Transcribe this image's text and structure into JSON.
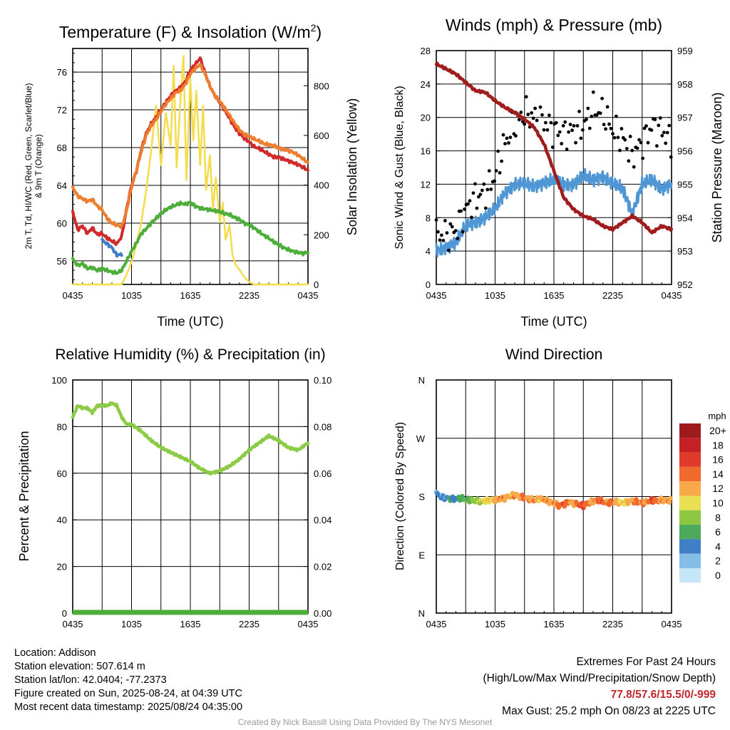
{
  "colors": {
    "red": "#d22a2a",
    "dark_red": "#b71c1c",
    "orange": "#ee7d2f",
    "green": "#4daf3a",
    "blue": "#3f7fc7",
    "yellow": "#f4dc4c",
    "light_green": "#8ccb45",
    "maroon": "#a11c1c",
    "black": "#000000",
    "sky_blue": "#4f96d4"
  },
  "chart_data": [
    {
      "id": "temperature",
      "type": "line",
      "title": "Temperature (F) & Insolation (W/m²)",
      "xlabel": "Time (UTC)",
      "ylabel_left": "2m T, Td, HI/WC (Red, Green, Scarlet/Blue) & 9m T (Orange)",
      "ylabel_right": "Solar Insolation (Yellow)",
      "x_tick_labels": [
        "0435",
        "1035",
        "1635",
        "2235",
        "0435"
      ],
      "x_range_hours": [
        0,
        24
      ],
      "y_left_ticks": [
        56,
        60,
        64,
        68,
        72,
        76
      ],
      "y_left_range": [
        53.5,
        78.5
      ],
      "y_right_ticks": [
        0,
        200,
        400,
        600,
        800
      ],
      "y_right_range": [
        0,
        950
      ],
      "grid": true,
      "series": [
        {
          "name": "2m T",
          "color": "#d22a2a",
          "axis": "left",
          "x": [
            0,
            0.5,
            1,
            1.5,
            2,
            2.5,
            3,
            3.5,
            4,
            4.5,
            5,
            5.5,
            6,
            6.5,
            7,
            7.5,
            8,
            8.5,
            9,
            9.5,
            10,
            10.5,
            11,
            11.5,
            12,
            12.5,
            13,
            13.5,
            14,
            14.5,
            15,
            15.5,
            16,
            16.5,
            17,
            17.5,
            18,
            18.5,
            19,
            19.5,
            20,
            20.5,
            21,
            21.5,
            22,
            22.5,
            23,
            23.5,
            24
          ],
          "y": [
            61.2,
            59.3,
            59.7,
            58.9,
            59.5,
            58.8,
            58.9,
            58.4,
            58.1,
            57.8,
            58.6,
            61.5,
            64.0,
            65.5,
            67.8,
            69.5,
            70.5,
            71.2,
            72.0,
            72.8,
            73.5,
            74.0,
            74.4,
            75.0,
            76.2,
            76.8,
            77.5,
            75.9,
            74.5,
            73.5,
            72.8,
            72.0,
            71.1,
            70.2,
            69.5,
            69.0,
            68.6,
            68.1,
            67.9,
            67.6,
            67.3,
            67.0,
            67.0,
            66.8,
            66.6,
            66.4,
            66.2,
            65.9,
            65.6
          ]
        },
        {
          "name": "9m T",
          "color": "#ee7d2f",
          "axis": "left",
          "x": [
            0,
            0.5,
            1,
            1.5,
            2,
            2.5,
            3,
            3.5,
            4,
            4.5,
            5,
            5.5,
            6,
            6.5,
            7,
            7.5,
            8,
            8.5,
            9,
            9.5,
            10,
            10.5,
            11,
            11.5,
            12,
            12.5,
            13,
            13.5,
            14,
            14.5,
            15,
            15.5,
            16,
            16.5,
            17,
            17.5,
            18,
            18.5,
            19,
            19.5,
            20,
            20.5,
            21,
            21.5,
            22,
            22.5,
            23,
            23.5,
            24
          ],
          "y": [
            63.8,
            62.9,
            62.6,
            62.3,
            62.5,
            61.8,
            61.4,
            60.5,
            60.0,
            59.8,
            59.6,
            61.3,
            63.8,
            65.6,
            67.6,
            69.3,
            70.3,
            71.0,
            71.8,
            72.6,
            73.2,
            73.8,
            74.1,
            74.7,
            75.8,
            76.4,
            76.8,
            75.8,
            74.5,
            73.5,
            72.9,
            72.2,
            71.4,
            70.6,
            69.9,
            69.4,
            69.2,
            68.9,
            68.7,
            68.4,
            68.3,
            68.2,
            68.0,
            67.8,
            67.7,
            67.5,
            67.2,
            66.8,
            66.4
          ]
        },
        {
          "name": "Td",
          "color": "#4daf3a",
          "axis": "left",
          "x": [
            0,
            0.5,
            1,
            1.5,
            2,
            2.5,
            3,
            3.5,
            4,
            4.5,
            5,
            5.5,
            6,
            6.5,
            7,
            7.5,
            8,
            8.5,
            9,
            9.5,
            10,
            10.5,
            11,
            11.5,
            12,
            12.5,
            13,
            13.5,
            14,
            14.5,
            15,
            15.5,
            16,
            16.5,
            17,
            17.5,
            18,
            18.5,
            19,
            19.5,
            20,
            20.5,
            21,
            21.5,
            22,
            22.5,
            23,
            23.5,
            24
          ],
          "y": [
            56.2,
            55.5,
            55.7,
            55.2,
            55.3,
            55.0,
            55.2,
            55.0,
            54.8,
            54.7,
            55.0,
            56.0,
            57.0,
            57.9,
            58.9,
            59.4,
            60.0,
            60.5,
            61.0,
            61.4,
            61.7,
            61.9,
            62.1,
            62.0,
            62.2,
            61.8,
            61.6,
            61.5,
            61.4,
            61.3,
            61.2,
            61.0,
            60.9,
            60.6,
            60.4,
            60.0,
            59.8,
            59.5,
            59.1,
            58.7,
            58.4,
            58.0,
            57.7,
            57.4,
            57.2,
            57.0,
            56.9,
            56.8,
            56.9
          ]
        },
        {
          "name": "HI/WC",
          "color": "#3f7fc7",
          "axis": "left",
          "x": [
            3.0,
            3.5,
            4.0,
            4.5,
            5.0
          ],
          "y": [
            58.2,
            57.8,
            57.4,
            56.6,
            56.7
          ]
        },
        {
          "name": "Solar Insolation",
          "color": "#f4dc4c",
          "axis": "right",
          "x": [
            0,
            5,
            5.5,
            6,
            6.5,
            7,
            7.5,
            8,
            8.5,
            9,
            9.5,
            10,
            10.3,
            10.6,
            11,
            11.3,
            11.6,
            12,
            12.3,
            12.6,
            13,
            13.3,
            13.6,
            14,
            14.3,
            14.6,
            15,
            15.3,
            15.6,
            16,
            16.3,
            16.6,
            17,
            17.5,
            18,
            18.5,
            19,
            24
          ],
          "y": [
            0,
            0,
            40,
            90,
            160,
            250,
            380,
            540,
            720,
            480,
            690,
            560,
            880,
            470,
            750,
            920,
            420,
            830,
            580,
            780,
            480,
            720,
            380,
            520,
            300,
            430,
            250,
            330,
            180,
            240,
            120,
            80,
            60,
            30,
            10,
            0,
            0,
            0
          ]
        }
      ]
    },
    {
      "id": "winds",
      "type": "line",
      "title": "Winds (mph) & Pressure (mb)",
      "xlabel": "Time (UTC)",
      "ylabel_left": "Sonic Wind & Gust (Blue, Black)",
      "ylabel_right": "Station Pressure (Maroon)",
      "x_tick_labels": [
        "0435",
        "1035",
        "1635",
        "2235",
        "0435"
      ],
      "x_range_hours": [
        0,
        24
      ],
      "y_left_ticks": [
        0,
        4,
        8,
        12,
        16,
        20,
        24,
        28
      ],
      "y_left_range": [
        0,
        28
      ],
      "y_right_ticks": [
        952,
        953,
        954,
        955,
        956,
        957,
        958,
        959
      ],
      "y_right_range": [
        952,
        959
      ],
      "grid": true,
      "series": [
        {
          "name": "Sonic Wind",
          "color": "#4f96d4",
          "axis": "left",
          "x": [
            0,
            1,
            2,
            3,
            4,
            5,
            6,
            7,
            8,
            9,
            10,
            11,
            12,
            13,
            14,
            15,
            16,
            17,
            18,
            19,
            20,
            21,
            22,
            23,
            24
          ],
          "y": [
            4.0,
            4.5,
            5.0,
            7.0,
            7.5,
            8.0,
            9.0,
            11.0,
            12.0,
            12.0,
            11.8,
            12.2,
            12.5,
            12.0,
            12.0,
            13.0,
            12.5,
            13.0,
            12.0,
            11.5,
            8.5,
            12.0,
            12.5,
            11.5,
            12.0
          ]
        },
        {
          "name": "Gust",
          "color": "#000000",
          "axis": "left",
          "x": [
            0,
            1,
            2,
            3,
            4,
            5,
            6,
            7,
            8,
            9,
            10,
            11,
            12,
            13,
            14,
            15,
            16,
            17,
            18,
            19,
            20,
            21,
            22,
            23,
            24
          ],
          "y": [
            6.0,
            6.0,
            6.5,
            9.0,
            10.5,
            11.0,
            13.0,
            17.0,
            19.0,
            20.5,
            20.0,
            19.5,
            18.5,
            18.0,
            18.5,
            19.0,
            21.0,
            20.5,
            18.5,
            17.5,
            15.5,
            17.0,
            19.0,
            18.5,
            17.0
          ]
        },
        {
          "name": "Station Pressure",
          "color": "#a11c1c",
          "axis": "right",
          "x": [
            0,
            1,
            2,
            3,
            4,
            5,
            6,
            7,
            8,
            9,
            10,
            11,
            12,
            13,
            14,
            15,
            16,
            17,
            18,
            19,
            20,
            21,
            22,
            23,
            24
          ],
          "y": [
            958.6,
            958.45,
            958.3,
            958.05,
            957.8,
            957.75,
            957.5,
            957.3,
            957.15,
            956.95,
            956.7,
            956.2,
            955.4,
            954.6,
            954.25,
            954.05,
            953.95,
            953.75,
            953.65,
            953.85,
            954.05,
            953.85,
            953.55,
            953.75,
            953.65
          ]
        }
      ]
    },
    {
      "id": "humidity",
      "type": "line",
      "title": "Relative Humidity (%) & Precipitation (in)",
      "ylabel_left": "Percent & Precipitation",
      "x_tick_labels": [
        "0435",
        "1035",
        "1635",
        "2235",
        "0435"
      ],
      "x_range_hours": [
        0,
        24
      ],
      "y_left_ticks": [
        0,
        20,
        40,
        60,
        80,
        100
      ],
      "y_left_range": [
        0,
        100
      ],
      "y_right_tick_labels": [
        "0.00",
        "0.02",
        "0.04",
        "0.06",
        "0.08",
        "0.10"
      ],
      "y_right_range": [
        0,
        0.1
      ],
      "grid": true,
      "series": [
        {
          "name": "Relative Humidity",
          "color": "#8ccb45",
          "axis": "left",
          "x": [
            0,
            0.5,
            1,
            1.5,
            2,
            2.5,
            3,
            3.5,
            4,
            4.5,
            5,
            5.5,
            6,
            7,
            8,
            9,
            10,
            11,
            12,
            13,
            14,
            15,
            16,
            17,
            18,
            19,
            20,
            21,
            22,
            23,
            24
          ],
          "y": [
            84,
            89,
            88,
            88,
            86,
            89,
            89,
            89,
            90,
            89,
            84,
            81,
            81,
            78,
            74,
            71,
            69,
            67,
            65,
            62,
            60,
            61,
            63,
            66,
            70,
            73,
            76,
            74,
            71,
            70,
            73
          ]
        },
        {
          "name": "Precipitation",
          "color": "#4daf3a",
          "axis": "right",
          "x": [
            0,
            24
          ],
          "y": [
            0,
            0
          ]
        }
      ]
    },
    {
      "id": "direction",
      "type": "scatter",
      "title": "Wind Direction",
      "ylabel_left": "Direction (Colored By Speed)",
      "x_tick_labels": [
        "0435",
        "1035",
        "1635",
        "2235",
        "0435"
      ],
      "x_range_hours": [
        0,
        24
      ],
      "y_tick_labels": [
        "N",
        "E",
        "S",
        "W",
        "N"
      ],
      "y_range_degrees": [
        0,
        360
      ],
      "grid": true,
      "legend": {
        "title": "mph",
        "labels": [
          "20+",
          "18",
          "16",
          "14",
          "12",
          "10",
          "8",
          "6",
          "4",
          "2",
          "0"
        ],
        "colors": [
          "#9e1b1b",
          "#c62027",
          "#e03a2a",
          "#f06a2e",
          "#f8a94a",
          "#e9df52",
          "#8dc640",
          "#4daa5c",
          "#3f7fc7",
          "#84bde6",
          "#c5e6f7"
        ]
      },
      "series": [
        {
          "name": "Direction",
          "x": [
            0,
            0.5,
            1,
            1.5,
            2,
            2.5,
            3,
            3.5,
            4,
            4.5,
            5,
            5.5,
            6,
            6.5,
            7,
            7.5,
            8,
            8.5,
            9,
            9.5,
            10,
            10.5,
            11,
            11.5,
            12,
            12.5,
            13,
            13.5,
            14,
            14.5,
            15,
            15.5,
            16,
            16.5,
            17,
            17.5,
            18,
            18.5,
            19,
            19.5,
            20,
            20.5,
            21,
            21.5,
            22,
            22.5,
            23,
            23.5,
            24
          ],
          "y": [
            185,
            180,
            178,
            177,
            176,
            178,
            175,
            174,
            173,
            172,
            173,
            174,
            175,
            176,
            178,
            181,
            183,
            180,
            178,
            176,
            174,
            176,
            175,
            172,
            170,
            166,
            168,
            172,
            170,
            168,
            166,
            170,
            172,
            174,
            172,
            170,
            171,
            172,
            170,
            172,
            174,
            172,
            170,
            172,
            174,
            173,
            174,
            174,
            173
          ],
          "speed": [
            3,
            4,
            3,
            5,
            4,
            6,
            7,
            7,
            8,
            9,
            10,
            11,
            12,
            13,
            12,
            11,
            13,
            12,
            14,
            12,
            13,
            11,
            12,
            13,
            12,
            14,
            15,
            13,
            12,
            14,
            16,
            13,
            12,
            14,
            15,
            13,
            14,
            12,
            10,
            11,
            12,
            14,
            13,
            12,
            16,
            14,
            13,
            12,
            12
          ]
        }
      ]
    }
  ],
  "info": {
    "location": "Location: Addison",
    "elevation": "Station elevation: 507.614 m",
    "latlon": "Station lat/lon: 42.0404; -77.2373",
    "created": "Figure created on Sun, 2025-08-24, at 04:39 UTC",
    "recent": "Most recent data timestamp: 2025/08/24 04:35:00"
  },
  "extremes": {
    "title": "Extremes For Past 24 Hours",
    "subtitle": "(High/Low/Max Wind/Precipitation/Snow Depth)",
    "values": "77.8/57.6/15.5/0/-999",
    "max_gust": "Max Gust: 25.2 mph On 08/23 at 2225 UTC"
  },
  "credit": "Created By Nick Bassill Using Data Provided By The NYS Mesonet"
}
